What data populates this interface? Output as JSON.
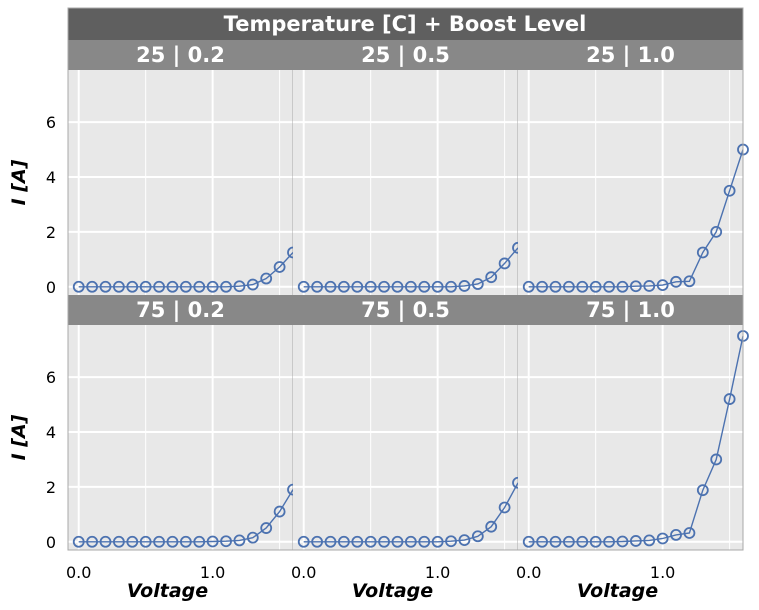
{
  "figure_title": "Temperature [C] + Boost Level",
  "colors": {
    "figure_strip": "#5f5f5f",
    "panel_strip": "#888888",
    "panel_bg": "#e8e8e8",
    "grid": "#ffffff",
    "series": "#4c72b0",
    "divider": "#a8a8a8"
  },
  "chart_data": {
    "type": "line",
    "title": "Temperature [C] + Boost Level",
    "xlabel": "Voltage",
    "ylabel": "I [A]",
    "x_ticks": [
      0,
      1
    ],
    "x_tick_labels": [
      "0.0",
      "1.0"
    ],
    "y_ticks": [
      0,
      2,
      4,
      6
    ],
    "y_tick_labels": [
      "0",
      "2",
      "4",
      "6"
    ],
    "xlim": [
      -0.08,
      1.6
    ],
    "ylim": [
      -0.3,
      7.9
    ],
    "grid": true,
    "marker": "open-circle",
    "panels": [
      {
        "label": "25 | 0.2",
        "x": [
          0,
          0.1,
          0.2,
          0.3,
          0.4,
          0.5,
          0.6,
          0.7,
          0.8,
          0.9,
          1.0,
          1.1,
          1.2,
          1.3,
          1.4,
          1.5,
          1.6
        ],
        "y": [
          0,
          0,
          0,
          0,
          0,
          0,
          0,
          0,
          0,
          0,
          0,
          0,
          0.02,
          0.08,
          0.3,
          0.72,
          1.25
        ]
      },
      {
        "label": "25 | 0.5",
        "x": [
          0,
          0.1,
          0.2,
          0.3,
          0.4,
          0.5,
          0.6,
          0.7,
          0.8,
          0.9,
          1.0,
          1.1,
          1.2,
          1.3,
          1.4,
          1.5,
          1.6
        ],
        "y": [
          0,
          0,
          0,
          0,
          0,
          0,
          0,
          0,
          0,
          0,
          0,
          0,
          0.03,
          0.1,
          0.35,
          0.85,
          1.42
        ]
      },
      {
        "label": "25 | 1.0",
        "x": [
          0,
          0.1,
          0.2,
          0.3,
          0.4,
          0.5,
          0.6,
          0.7,
          0.8,
          0.9,
          1.0,
          1.1,
          1.2,
          1.3,
          1.4,
          1.5,
          1.6
        ],
        "y": [
          0,
          0,
          0,
          0,
          0,
          0,
          0,
          0,
          0.02,
          0.03,
          0.06,
          0.18,
          0.2,
          1.25,
          2.0,
          3.5,
          5.0
        ]
      },
      {
        "label": "75 | 0.2",
        "x": [
          0,
          0.1,
          0.2,
          0.3,
          0.4,
          0.5,
          0.6,
          0.7,
          0.8,
          0.9,
          1.0,
          1.1,
          1.2,
          1.3,
          1.4,
          1.5,
          1.6
        ],
        "y": [
          0,
          0,
          0,
          0,
          0,
          0,
          0,
          0,
          0,
          0,
          0.01,
          0.02,
          0.05,
          0.15,
          0.5,
          1.1,
          1.9
        ]
      },
      {
        "label": "75 | 0.5",
        "x": [
          0,
          0.1,
          0.2,
          0.3,
          0.4,
          0.5,
          0.6,
          0.7,
          0.8,
          0.9,
          1.0,
          1.1,
          1.2,
          1.3,
          1.4,
          1.5,
          1.6
        ],
        "y": [
          0,
          0,
          0,
          0,
          0,
          0,
          0,
          0,
          0,
          0,
          0,
          0.02,
          0.06,
          0.2,
          0.55,
          1.25,
          2.15
        ]
      },
      {
        "label": "75 | 1.0",
        "x": [
          0,
          0.1,
          0.2,
          0.3,
          0.4,
          0.5,
          0.6,
          0.7,
          0.8,
          0.9,
          1.0,
          1.1,
          1.2,
          1.3,
          1.4,
          1.5,
          1.6
        ],
        "y": [
          0,
          0,
          0,
          0,
          0,
          0,
          0,
          0.01,
          0.03,
          0.05,
          0.12,
          0.25,
          0.32,
          1.88,
          3.0,
          5.2,
          7.5
        ]
      }
    ]
  }
}
